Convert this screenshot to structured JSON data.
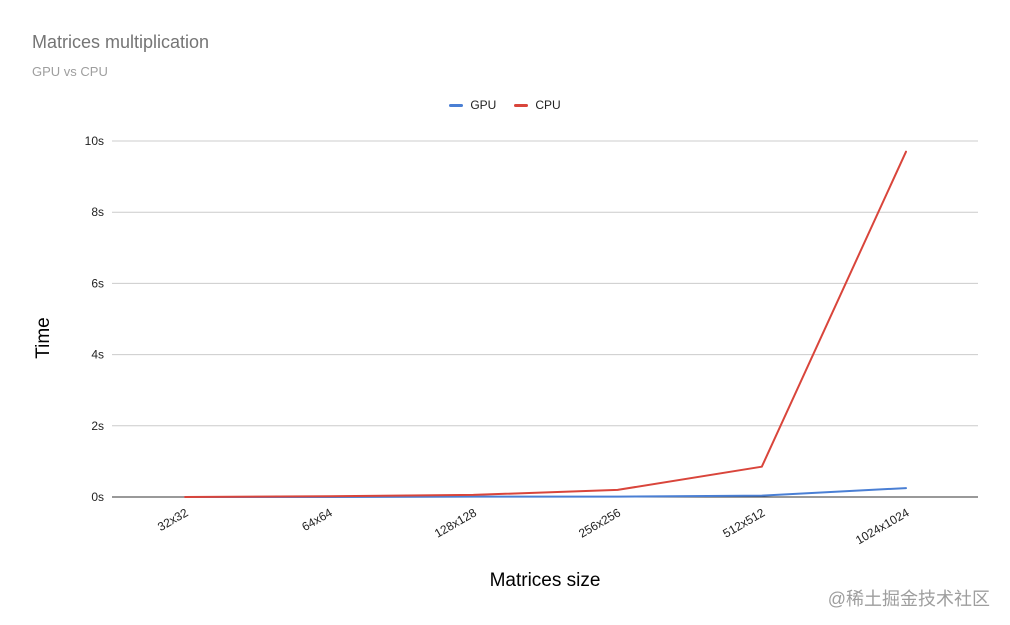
{
  "chart_data": {
    "type": "line",
    "title": "Matrices multiplication",
    "subtitle": "GPU vs CPU",
    "xlabel": "Matrices size",
    "ylabel": "Time",
    "categories": [
      "32x32",
      "64x64",
      "128x128",
      "256x256",
      "512x512",
      "1024x1024"
    ],
    "y_ticks": [
      "0s",
      "2s",
      "4s",
      "6s",
      "8s",
      "10s"
    ],
    "ylim": [
      0,
      10
    ],
    "grid": true,
    "legend_position": "top",
    "series": [
      {
        "name": "GPU",
        "color": "#4a7fd4",
        "values": [
          0.0,
          0.0,
          0.01,
          0.01,
          0.04,
          0.25
        ]
      },
      {
        "name": "CPU",
        "color": "#d9453b",
        "values": [
          0.0,
          0.02,
          0.06,
          0.2,
          0.85,
          9.7
        ]
      }
    ]
  },
  "watermark": "@稀土掘金技术社区"
}
